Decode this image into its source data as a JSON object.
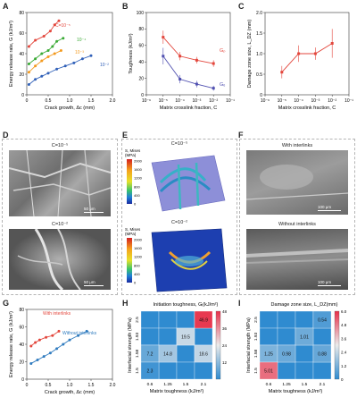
{
  "panels": {
    "A": {
      "label": "A"
    },
    "B": {
      "label": "B"
    },
    "C": {
      "label": "C"
    },
    "D": {
      "label": "D",
      "top_caption": "C=10⁻⁵",
      "bottom_caption": "C=10⁻²",
      "scale_top": "50 μm",
      "scale_bottom": "50 μm"
    },
    "E": {
      "label": "E",
      "top_caption": "C=10⁻⁵",
      "bottom_caption": "C=10⁻²",
      "legend_title": "S, Mises",
      "legend_unit": "(MPa)",
      "legend_ticks_top": [
        "2000",
        "1600",
        "1200",
        "800",
        "400",
        "0"
      ],
      "legend_ticks_bottom": [
        "2000",
        "1600",
        "1200",
        "800",
        "400",
        "0"
      ]
    },
    "F": {
      "label": "F",
      "top_caption": "With interlinks",
      "bottom_caption": "Without interlinks",
      "scale_top": "100 μm",
      "scale_bottom": "100 μm"
    },
    "G": {
      "label": "G"
    },
    "H": {
      "label": "H"
    },
    "I": {
      "label": "I"
    }
  },
  "chart_data": [
    {
      "id": "A",
      "type": "scatter",
      "xlabel": "Crack growth, Δc (mm)",
      "ylabel": "Energy release rate, G (kJ/m²)",
      "xlim": [
        0,
        2.0
      ],
      "ylim": [
        0,
        80
      ],
      "xticks": [
        "0",
        "0.5",
        "1.0",
        "1.5",
        "2.0"
      ],
      "yticks": [
        "0",
        "20",
        "40",
        "60",
        "80"
      ],
      "series": [
        {
          "name": "C=10⁻⁵",
          "color": "#e3463c",
          "x": [
            0.05,
            0.2,
            0.4,
            0.55,
            0.65,
            0.75
          ],
          "y": [
            47,
            53,
            57,
            62,
            68,
            72
          ]
        },
        {
          "name": "10⁻⁴",
          "color": "#3aaa35",
          "x": [
            0.05,
            0.2,
            0.35,
            0.5,
            0.6,
            0.7,
            0.85
          ],
          "y": [
            30,
            35,
            40,
            43,
            47,
            52,
            55
          ]
        },
        {
          "name": "10⁻³",
          "color": "#f39a1e",
          "x": [
            0.05,
            0.2,
            0.35,
            0.5,
            0.65,
            0.8
          ],
          "y": [
            22,
            28,
            33,
            37,
            40,
            43
          ]
        },
        {
          "name": "10⁻²",
          "color": "#3060b8",
          "x": [
            0.05,
            0.2,
            0.35,
            0.5,
            0.7,
            0.9,
            1.1,
            1.3,
            1.5
          ],
          "y": [
            10,
            15,
            18,
            21,
            25,
            28,
            31,
            35,
            38
          ]
        }
      ]
    },
    {
      "id": "B",
      "type": "line",
      "xlabel": "Matrix crosslink fraction, C",
      "ylabel": "Toughness (kJ/m²)",
      "xlim_log": [
        -6,
        -1
      ],
      "ylim": [
        0,
        100
      ],
      "xticks": [
        "10⁻⁶",
        "10⁻⁵",
        "10⁻⁴",
        "10⁻³",
        "10⁻²",
        "10⁻¹"
      ],
      "yticks": [
        "0",
        "20",
        "40",
        "60",
        "80",
        "100"
      ],
      "series": [
        {
          "name": "Gₚ",
          "color": "#e3463c",
          "x": [
            -5,
            -4,
            -3,
            -2
          ],
          "y": [
            70,
            47,
            42,
            38
          ],
          "err": [
            8,
            5,
            4,
            4
          ]
        },
        {
          "name": "Gₑ",
          "color": "#5050b0",
          "x": [
            -5,
            -4,
            -3,
            -2
          ],
          "y": [
            47,
            19,
            13,
            8
          ],
          "err": [
            10,
            5,
            4,
            3
          ]
        }
      ]
    },
    {
      "id": "C",
      "type": "line",
      "xlabel": "Matrix crosslink fraction, C",
      "ylabel": "Damage zone size, L_DZ (mm)",
      "xlim_log": [
        -6,
        -1
      ],
      "ylim": [
        0,
        2.0
      ],
      "xticks": [
        "10⁻⁶",
        "10⁻⁵",
        "10⁻⁴",
        "10⁻³",
        "10⁻²",
        "10⁻¹"
      ],
      "yticks": [
        "0",
        "0.5",
        "1.0",
        "1.5",
        "2.0"
      ],
      "series": [
        {
          "name": "",
          "color": "#e3463c",
          "x": [
            -5,
            -4,
            -3,
            -2
          ],
          "y": [
            0.55,
            1.0,
            1.0,
            1.25
          ],
          "err": [
            0.15,
            0.2,
            0.15,
            0.35
          ]
        }
      ]
    },
    {
      "id": "G",
      "type": "scatter",
      "xlabel": "Crack growth, Δc (mm)",
      "ylabel": "Energy release rate, G (kJ/m²)",
      "xlim": [
        0,
        2.0
      ],
      "ylim": [
        0,
        80
      ],
      "xticks": [
        "0",
        "0.5",
        "1.0",
        "1.5",
        "2.0"
      ],
      "yticks": [
        "0",
        "20",
        "40",
        "60",
        "80"
      ],
      "series": [
        {
          "name": "With interlinks",
          "color": "#e3463c",
          "x": [
            0.1,
            0.2,
            0.3,
            0.45,
            0.6,
            0.75
          ],
          "y": [
            38,
            42,
            45,
            48,
            50,
            55
          ]
        },
        {
          "name": "Without interlinks",
          "color": "#2f7bbf",
          "x": [
            0.1,
            0.25,
            0.4,
            0.55,
            0.7,
            0.85,
            1.0,
            1.2,
            1.4
          ],
          "y": [
            18,
            22,
            26,
            30,
            35,
            40,
            45,
            50,
            55
          ]
        }
      ]
    },
    {
      "id": "H",
      "type": "heatmap",
      "title": "Initiation toughness, Gᵢ(kJ/m²)",
      "xlabel": "Matrix toughness (kJ/m²)",
      "ylabel": "Interfacial strength (MPa)",
      "xcats": [
        "0.6",
        "1.25",
        "1.5",
        "2.1"
      ],
      "ycats": [
        "2.5",
        "1.93",
        "1.58",
        "1.5"
      ],
      "cbar_ticks": [
        "48",
        "36",
        "24",
        "12"
      ],
      "cbar_range": [
        0,
        48
      ],
      "cells": [
        {
          "xi": 3,
          "yi": 0,
          "value": 46.9,
          "label": "46.9"
        },
        {
          "xi": 2,
          "yi": 1,
          "value": 19.5,
          "label": "19.5"
        },
        {
          "xi": 0,
          "yi": 2,
          "value": 7.2,
          "label": "7.2"
        },
        {
          "xi": 1,
          "yi": 2,
          "value": 14.8,
          "label": "14.8"
        },
        {
          "xi": 3,
          "yi": 2,
          "value": 18.6,
          "label": "18.6"
        },
        {
          "xi": 0,
          "yi": 3,
          "value": 2.3,
          "label": "2.3"
        }
      ]
    },
    {
      "id": "I",
      "type": "heatmap",
      "title": "Damage zone size, L_DZ(mm)",
      "xlabel": "Matrix toughness (kJ/m²)",
      "ylabel": "Interfacial strength (MPa)",
      "xcats": [
        "0.6",
        "1.25",
        "1.5",
        "2.1"
      ],
      "ycats": [
        "2.5",
        "1.93",
        "1.58",
        "1.5"
      ],
      "cbar_ticks": [
        "6.0",
        "4.8",
        "3.6",
        "2.4",
        "1.2",
        "0"
      ],
      "cbar_range": [
        0,
        6
      ],
      "cells": [
        {
          "xi": 3,
          "yi": 0,
          "value": 0.54,
          "label": "0.54"
        },
        {
          "xi": 2,
          "yi": 1,
          "value": 1.01,
          "label": "1.01"
        },
        {
          "xi": 0,
          "yi": 2,
          "value": 1.25,
          "label": "1.25"
        },
        {
          "xi": 1,
          "yi": 2,
          "value": 0.98,
          "label": "0.98"
        },
        {
          "xi": 3,
          "yi": 2,
          "value": 0.88,
          "label": "0.88"
        },
        {
          "xi": 0,
          "yi": 3,
          "value": 5.01,
          "label": "5.01"
        }
      ]
    }
  ]
}
